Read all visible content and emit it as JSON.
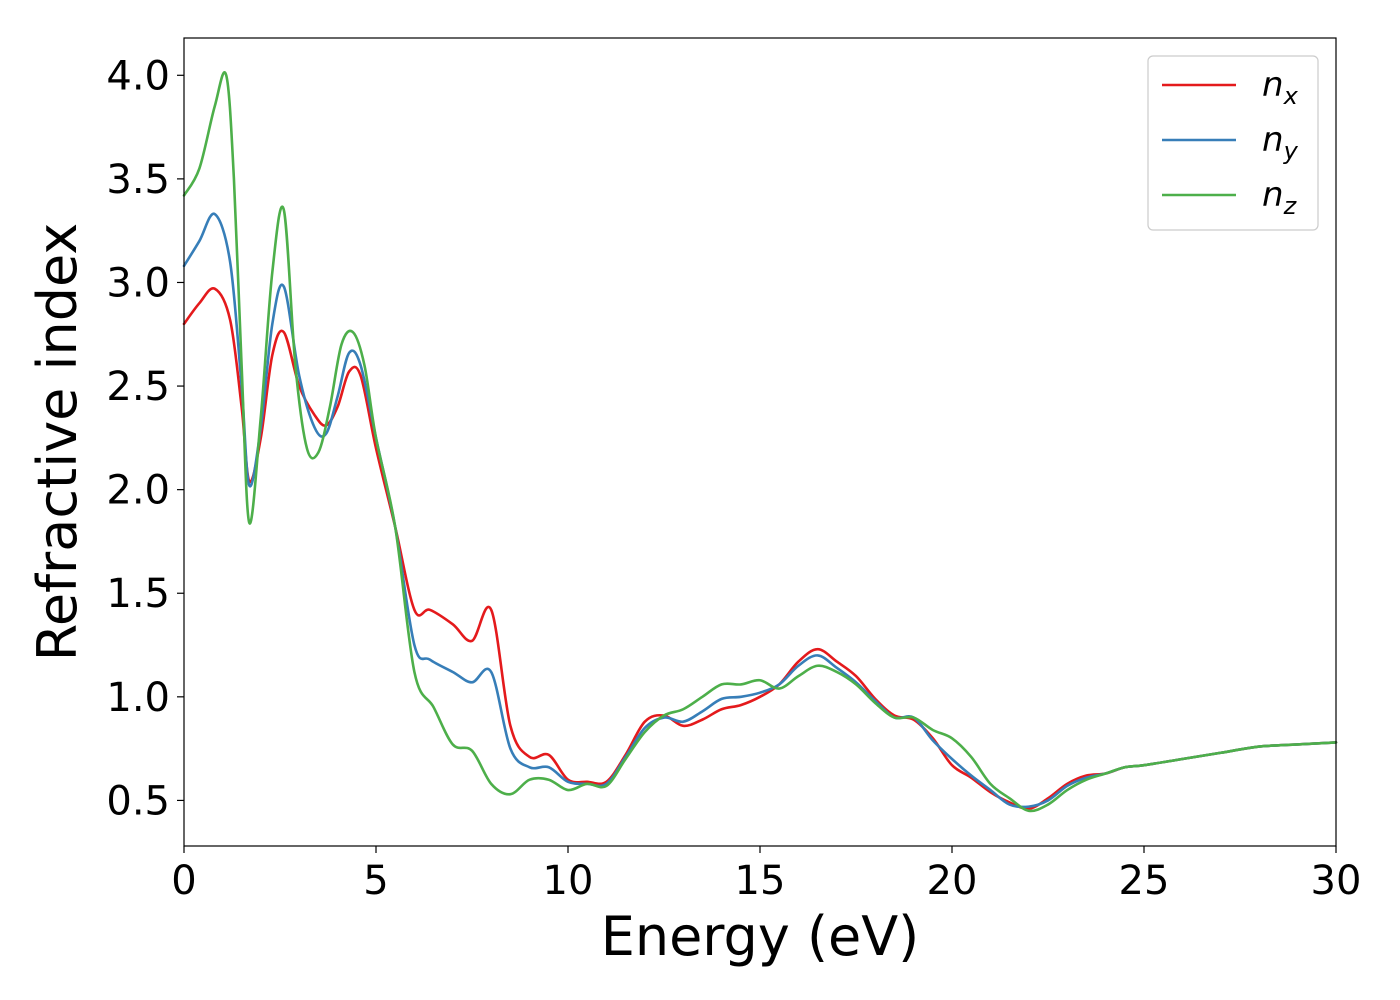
{
  "chart_data": {
    "type": "line",
    "xlabel": "Energy (eV)",
    "ylabel": "Refractive index",
    "xlim": [
      0,
      30
    ],
    "ylim": [
      0.28,
      4.18
    ],
    "xticks": [
      0,
      5,
      10,
      15,
      20,
      25,
      30
    ],
    "xtick_labels": [
      "0",
      "5",
      "10",
      "15",
      "20",
      "25",
      "30"
    ],
    "yticks": [
      0.5,
      1.0,
      1.5,
      2.0,
      2.5,
      3.0,
      3.5,
      4.0
    ],
    "ytick_labels": [
      "0.5",
      "1.0",
      "1.5",
      "2.0",
      "2.5",
      "3.0",
      "3.5",
      "4.0"
    ],
    "grid": false,
    "legend_position": "top-right",
    "series": [
      {
        "name": "n_x",
        "label_base": "n",
        "label_sub": "x",
        "color": "#e41a1c",
        "x": [
          0,
          0.4,
          0.8,
          1.2,
          1.5,
          1.7,
          2.0,
          2.3,
          2.6,
          3.0,
          3.4,
          3.7,
          4.0,
          4.3,
          4.6,
          5.0,
          5.5,
          6.0,
          6.4,
          7.0,
          7.5,
          8.0,
          8.5,
          9.0,
          9.5,
          10.0,
          10.5,
          11.0,
          11.5,
          12.0,
          12.5,
          13.0,
          13.5,
          14.0,
          14.5,
          15.0,
          15.5,
          16.0,
          16.5,
          17.0,
          17.5,
          18.0,
          18.5,
          19.0,
          19.5,
          20.0,
          20.5,
          21.0,
          21.5,
          22.0,
          22.5,
          23.0,
          23.5,
          24.0,
          24.5,
          25.0,
          26.0,
          27.0,
          28.0,
          29.0,
          30.0
        ],
        "values": [
          2.8,
          2.9,
          2.97,
          2.82,
          2.4,
          2.04,
          2.25,
          2.65,
          2.76,
          2.5,
          2.36,
          2.31,
          2.4,
          2.57,
          2.55,
          2.2,
          1.82,
          1.42,
          1.42,
          1.35,
          1.27,
          1.42,
          0.86,
          0.71,
          0.72,
          0.6,
          0.59,
          0.59,
          0.72,
          0.88,
          0.91,
          0.86,
          0.89,
          0.94,
          0.96,
          1.0,
          1.06,
          1.17,
          1.23,
          1.17,
          1.1,
          0.99,
          0.91,
          0.89,
          0.8,
          0.67,
          0.61,
          0.54,
          0.49,
          0.46,
          0.51,
          0.58,
          0.62,
          0.63,
          0.66,
          0.67,
          0.7,
          0.73,
          0.76,
          0.77,
          0.78
        ]
      },
      {
        "name": "n_y",
        "label_base": "n",
        "label_sub": "y",
        "color": "#377eb8",
        "x": [
          0,
          0.4,
          0.8,
          1.2,
          1.5,
          1.7,
          2.0,
          2.3,
          2.6,
          3.0,
          3.4,
          3.7,
          4.0,
          4.3,
          4.6,
          5.0,
          5.5,
          6.0,
          6.4,
          7.0,
          7.5,
          8.0,
          8.5,
          9.0,
          9.5,
          10.0,
          10.5,
          11.0,
          11.5,
          12.0,
          12.5,
          13.0,
          13.5,
          14.0,
          14.5,
          15.0,
          15.5,
          16.0,
          16.5,
          17.0,
          17.5,
          18.0,
          18.5,
          19.0,
          19.5,
          20.0,
          20.5,
          21.0,
          21.5,
          22.0,
          22.5,
          23.0,
          23.5,
          24.0,
          24.5,
          25.0,
          26.0,
          27.0,
          28.0,
          29.0,
          30.0
        ],
        "values": [
          3.08,
          3.2,
          3.33,
          3.1,
          2.5,
          2.02,
          2.3,
          2.8,
          2.98,
          2.55,
          2.3,
          2.27,
          2.45,
          2.66,
          2.6,
          2.25,
          1.82,
          1.25,
          1.18,
          1.12,
          1.07,
          1.12,
          0.75,
          0.66,
          0.66,
          0.59,
          0.58,
          0.58,
          0.71,
          0.85,
          0.9,
          0.88,
          0.93,
          0.99,
          1.0,
          1.02,
          1.06,
          1.15,
          1.2,
          1.14,
          1.07,
          0.98,
          0.9,
          0.9,
          0.79,
          0.7,
          0.62,
          0.55,
          0.48,
          0.47,
          0.5,
          0.57,
          0.61,
          0.63,
          0.66,
          0.67,
          0.7,
          0.73,
          0.76,
          0.77,
          0.78
        ]
      },
      {
        "name": "n_z",
        "label_base": "n",
        "label_sub": "z",
        "color": "#4daf4a",
        "x": [
          0,
          0.4,
          0.8,
          1.1,
          1.3,
          1.5,
          1.7,
          2.0,
          2.3,
          2.6,
          2.9,
          3.2,
          3.5,
          3.8,
          4.1,
          4.4,
          4.7,
          5.0,
          5.5,
          6.0,
          6.5,
          7.0,
          7.5,
          8.0,
          8.5,
          9.0,
          9.5,
          10.0,
          10.5,
          11.0,
          11.5,
          12.0,
          12.5,
          13.0,
          13.5,
          14.0,
          14.5,
          15.0,
          15.5,
          16.0,
          16.5,
          17.0,
          17.5,
          18.0,
          18.5,
          19.0,
          19.5,
          20.0,
          20.5,
          21.0,
          21.5,
          22.0,
          22.5,
          23.0,
          23.5,
          24.0,
          24.5,
          25.0,
          26.0,
          27.0,
          28.0,
          29.0,
          30.0
        ],
        "values": [
          3.42,
          3.55,
          3.85,
          4.0,
          3.5,
          2.6,
          1.84,
          2.35,
          3.05,
          3.35,
          2.6,
          2.2,
          2.18,
          2.4,
          2.7,
          2.76,
          2.6,
          2.25,
          1.82,
          1.12,
          0.95,
          0.77,
          0.74,
          0.58,
          0.53,
          0.6,
          0.6,
          0.55,
          0.58,
          0.57,
          0.7,
          0.83,
          0.91,
          0.94,
          1.0,
          1.06,
          1.06,
          1.08,
          1.04,
          1.1,
          1.15,
          1.12,
          1.06,
          0.97,
          0.9,
          0.9,
          0.84,
          0.8,
          0.71,
          0.58,
          0.51,
          0.45,
          0.48,
          0.55,
          0.6,
          0.63,
          0.66,
          0.67,
          0.7,
          0.73,
          0.76,
          0.77,
          0.78
        ]
      }
    ]
  }
}
